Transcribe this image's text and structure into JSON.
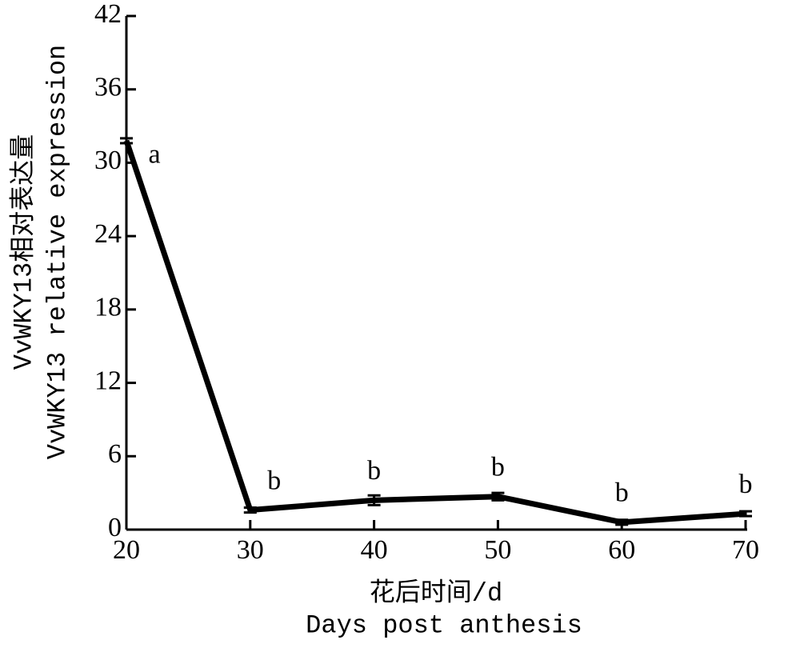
{
  "chart_data": {
    "type": "line",
    "x_label": [
      "花后时间/d",
      "Days post anthesis"
    ],
    "y_label": [
      "VvWKY13相对表达量",
      "VvWKY13 relative expression"
    ],
    "x": [
      20,
      30,
      40,
      50,
      60,
      70
    ],
    "series": [
      {
        "color": "#000000",
        "values": [
          31.8,
          1.6,
          2.4,
          2.7,
          0.6,
          1.3
        ],
        "errors": [
          0.2,
          0.2,
          0.4,
          0.3,
          0.2,
          0.2
        ],
        "labels": [
          "a",
          "b",
          "b",
          "b",
          "b",
          "b"
        ]
      }
    ],
    "xlim": [
      20,
      70
    ],
    "xticks": [
      20,
      30,
      40,
      50,
      60,
      70
    ],
    "ylim": [
      0,
      42
    ],
    "yticks": [
      0,
      6,
      12,
      18,
      24,
      30,
      36,
      42
    ]
  }
}
